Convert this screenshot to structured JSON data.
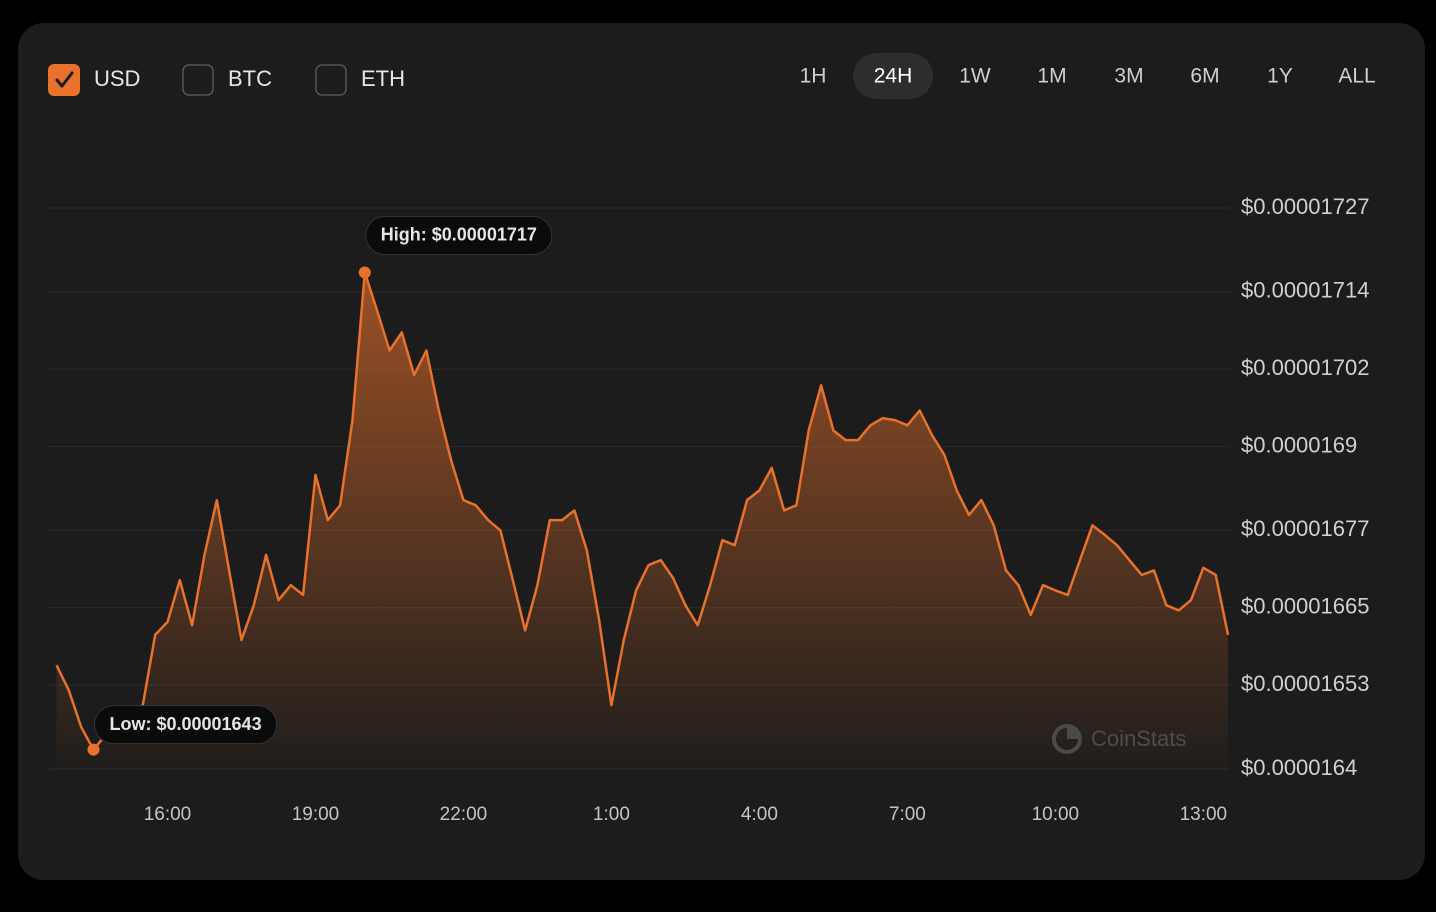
{
  "currencies": [
    {
      "label": "USD",
      "checked": true
    },
    {
      "label": "BTC",
      "checked": false
    },
    {
      "label": "ETH",
      "checked": false
    }
  ],
  "timeframes": [
    "1H",
    "24H",
    "1W",
    "1M",
    "3M",
    "6M",
    "1Y",
    "ALL"
  ],
  "active_timeframe": "24H",
  "watermark": "CoinStats",
  "chart_data": {
    "type": "area",
    "color": "#e8712b",
    "grid": true,
    "categories": [
      "13:45",
      "14:00",
      "14:15",
      "14:30",
      "14:45",
      "15:00",
      "15:15",
      "15:30",
      "15:45",
      "16:00",
      "16:15",
      "16:30",
      "16:45",
      "17:00",
      "17:15",
      "17:30",
      "17:45",
      "18:00",
      "18:15",
      "18:30",
      "18:45",
      "19:00",
      "19:15",
      "19:30",
      "19:45",
      "20:00",
      "20:15",
      "20:30",
      "20:45",
      "21:00",
      "21:15",
      "21:30",
      "21:45",
      "22:00",
      "22:15",
      "22:30",
      "22:45",
      "23:00",
      "23:15",
      "23:30",
      "23:45",
      "0:00",
      "0:15",
      "0:30",
      "0:45",
      "1:00",
      "1:15",
      "1:30",
      "1:45",
      "2:00",
      "2:15",
      "2:30",
      "2:45",
      "3:00",
      "3:15",
      "3:30",
      "3:45",
      "4:00",
      "4:15",
      "4:30",
      "4:45",
      "5:00",
      "5:15",
      "5:30",
      "5:45",
      "6:00",
      "6:15",
      "6:30",
      "6:45",
      "7:00",
      "7:15",
      "7:30",
      "7:45",
      "8:00",
      "8:15",
      "8:30",
      "8:45",
      "9:00",
      "9:15",
      "9:30",
      "9:45",
      "10:00",
      "10:15",
      "10:30",
      "10:45",
      "11:00",
      "11:15",
      "11:30",
      "11:45",
      "12:00",
      "12:15",
      "12:30",
      "12:45",
      "13:00",
      "13:15",
      "13:30"
    ],
    "values": [
      1.6561e-05,
      1.6522e-05,
      1.6465e-05,
      1.643e-05,
      1.6453e-05,
      1.6468e-05,
      1.6484e-05,
      1.6499e-05,
      1.6608e-05,
      1.6628e-05,
      1.6693e-05,
      1.6623e-05,
      1.6732e-05,
      1.6817e-05,
      1.6708e-05,
      1.66e-05,
      1.6654e-05,
      1.6732e-05,
      1.6662e-05,
      1.6685e-05,
      1.667e-05,
      1.6856e-05,
      1.6786e-05,
      1.6809e-05,
      1.6941e-05,
      1.717e-05,
      1.7111e-05,
      1.7049e-05,
      1.7077e-05,
      1.7011e-05,
      1.7049e-05,
      1.6956e-05,
      1.6879e-05,
      1.6817e-05,
      1.6809e-05,
      1.6786e-05,
      1.677e-05,
      1.6693e-05,
      1.6615e-05,
      1.6685e-05,
      1.6786e-05,
      1.6786e-05,
      1.6801e-05,
      1.6739e-05,
      1.6631e-05,
      1.6499e-05,
      1.66e-05,
      1.6677e-05,
      1.6716e-05,
      1.6724e-05,
      1.6696e-05,
      1.6654e-05,
      1.6623e-05,
      1.6685e-05,
      1.6755e-05,
      1.6747e-05,
      1.6817e-05,
      1.6832e-05,
      1.6867e-05,
      1.6801e-05,
      1.6809e-05,
      1.6925e-05,
      1.6995e-05,
      1.6925e-05,
      1.691e-05,
      1.691e-05,
      1.6933e-05,
      1.6944e-05,
      1.6941e-05,
      1.6933e-05,
      1.6956e-05,
      1.6918e-05,
      1.6887e-05,
      1.6832e-05,
      1.6794e-05,
      1.6817e-05,
      1.6778e-05,
      1.6708e-05,
      1.6685e-05,
      1.6639e-05,
      1.6685e-05,
      1.6677e-05,
      1.667e-05,
      1.6724e-05,
      1.6778e-05,
      1.6763e-05,
      1.6747e-05,
      1.6724e-05,
      1.6701e-05,
      1.6708e-05,
      1.6654e-05,
      1.6646e-05,
      1.6662e-05,
      1.6712e-05,
      1.6701e-05,
      1.6608e-05
    ],
    "ylim": [
      1.64e-05,
      1.727e-05
    ],
    "yticks": [
      {
        "value": 1.64e-05,
        "label": "$0.0000164"
      },
      {
        "value": 1.653e-05,
        "label": "$0.00001653"
      },
      {
        "value": 1.665e-05,
        "label": "$0.00001665"
      },
      {
        "value": 1.677e-05,
        "label": "$0.00001677"
      },
      {
        "value": 1.69e-05,
        "label": "$0.0000169"
      },
      {
        "value": 1.702e-05,
        "label": "$0.00001702"
      },
      {
        "value": 1.714e-05,
        "label": "$0.00001714"
      },
      {
        "value": 1.727e-05,
        "label": "$0.00001727"
      }
    ],
    "xticks": [
      "16:00",
      "19:00",
      "22:00",
      "1:00",
      "4:00",
      "7:00",
      "10:00",
      "13:00"
    ],
    "annotations": [
      {
        "label": "High: $0.00001717",
        "x": "20:00",
        "value": 1.717e-05
      },
      {
        "label": "Low: $0.00001643",
        "x": "14:30",
        "value": 1.643e-05
      }
    ]
  }
}
